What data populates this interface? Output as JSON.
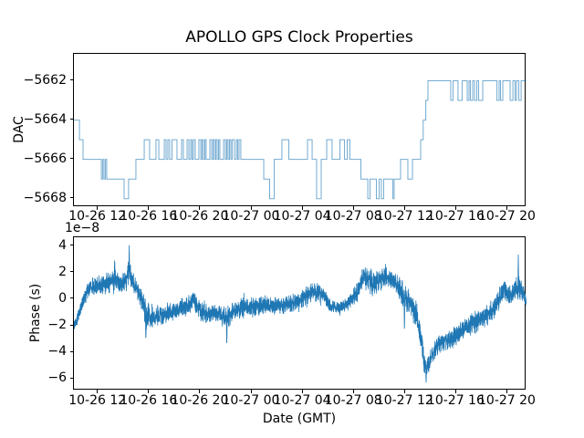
{
  "colors": {
    "line": "#1f77b4",
    "axis": "#000000",
    "background": "#ffffff"
  },
  "chart_data": [
    {
      "type": "line",
      "title": "APOLLO GPS Clock Properties",
      "ylabel": "DAC",
      "line_style": "steps-post",
      "line_color": "#1f77b4",
      "ylim": [
        -5668.43,
        -5660.63
      ],
      "yticks": [
        -5662,
        -5664,
        -5666,
        -5668
      ],
      "ytick_labels": [
        "−5662",
        "−5664",
        "−5666",
        "−5668"
      ],
      "xlim_hours": [
        10.1,
        45.47
      ],
      "xticks_hours": [
        12,
        16,
        20,
        24,
        28,
        32,
        36,
        40,
        44
      ],
      "xtick_labels": [
        "10-26 12",
        "10-26 16",
        "10-26 20",
        "10-27 00",
        "10-27 04",
        "10-27 08",
        "10-27 12",
        "10-27 16",
        "10-27 20"
      ],
      "grid": false,
      "steps_hours_dac": [
        [
          10.1,
          -5664
        ],
        [
          10.53,
          -5665
        ],
        [
          10.81,
          -5666
        ],
        [
          12.24,
          -5667
        ],
        [
          12.35,
          -5666
        ],
        [
          12.45,
          -5667
        ],
        [
          12.56,
          -5666
        ],
        [
          12.66,
          -5667
        ],
        [
          14.02,
          -5668
        ],
        [
          14.37,
          -5667
        ],
        [
          14.94,
          -5666
        ],
        [
          15.59,
          -5665
        ],
        [
          16.01,
          -5666
        ],
        [
          16.51,
          -5665
        ],
        [
          16.73,
          -5666
        ],
        [
          17.16,
          -5665
        ],
        [
          17.3,
          -5666
        ],
        [
          17.44,
          -5665
        ],
        [
          17.58,
          -5666
        ],
        [
          17.76,
          -5665
        ],
        [
          18.15,
          -5666
        ],
        [
          18.51,
          -5665
        ],
        [
          18.65,
          -5666
        ],
        [
          18.94,
          -5665
        ],
        [
          19.08,
          -5666
        ],
        [
          19.22,
          -5665
        ],
        [
          19.33,
          -5666
        ],
        [
          19.44,
          -5665
        ],
        [
          19.58,
          -5666
        ],
        [
          19.86,
          -5665
        ],
        [
          20.01,
          -5666
        ],
        [
          20.11,
          -5665
        ],
        [
          20.22,
          -5666
        ],
        [
          20.33,
          -5665
        ],
        [
          20.43,
          -5666
        ],
        [
          20.72,
          -5665
        ],
        [
          20.86,
          -5666
        ],
        [
          20.97,
          -5665
        ],
        [
          21.08,
          -5666
        ],
        [
          21.18,
          -5665
        ],
        [
          21.29,
          -5666
        ],
        [
          21.4,
          -5665
        ],
        [
          21.5,
          -5666
        ],
        [
          21.79,
          -5665
        ],
        [
          21.93,
          -5666
        ],
        [
          22.04,
          -5665
        ],
        [
          22.14,
          -5666
        ],
        [
          22.25,
          -5665
        ],
        [
          22.36,
          -5666
        ],
        [
          22.46,
          -5665
        ],
        [
          22.64,
          -5666
        ],
        [
          22.79,
          -5665
        ],
        [
          22.89,
          -5666
        ],
        [
          23.0,
          -5665
        ],
        [
          23.14,
          -5666
        ],
        [
          24.93,
          -5667
        ],
        [
          25.39,
          -5668
        ],
        [
          25.75,
          -5666
        ],
        [
          26.35,
          -5665
        ],
        [
          26.89,
          -5666
        ],
        [
          28.35,
          -5665
        ],
        [
          28.71,
          -5666
        ],
        [
          29.06,
          -5668
        ],
        [
          29.42,
          -5666
        ],
        [
          29.85,
          -5665
        ],
        [
          30.27,
          -5666
        ],
        [
          30.88,
          -5665
        ],
        [
          31.24,
          -5666
        ],
        [
          31.45,
          -5665
        ],
        [
          31.66,
          -5666
        ],
        [
          32.52,
          -5667
        ],
        [
          33.06,
          -5668
        ],
        [
          33.23,
          -5667
        ],
        [
          33.73,
          -5668
        ],
        [
          33.95,
          -5667
        ],
        [
          34.12,
          -5668
        ],
        [
          34.3,
          -5667
        ],
        [
          35.02,
          -5668
        ],
        [
          35.12,
          -5667
        ],
        [
          35.62,
          -5666
        ],
        [
          36.19,
          -5667
        ],
        [
          36.55,
          -5666
        ],
        [
          37.19,
          -5665
        ],
        [
          37.39,
          -5664
        ],
        [
          37.59,
          -5663
        ],
        [
          37.76,
          -5662
        ],
        [
          39.54,
          -5663
        ],
        [
          39.72,
          -5662
        ],
        [
          40.11,
          -5663
        ],
        [
          40.43,
          -5662
        ],
        [
          40.83,
          -5663
        ],
        [
          40.97,
          -5662
        ],
        [
          41.08,
          -5663
        ],
        [
          41.26,
          -5662
        ],
        [
          41.4,
          -5663
        ],
        [
          41.58,
          -5662
        ],
        [
          41.72,
          -5663
        ],
        [
          42.04,
          -5662
        ],
        [
          43.15,
          -5663
        ],
        [
          43.32,
          -5662
        ],
        [
          43.43,
          -5663
        ],
        [
          43.61,
          -5662
        ],
        [
          44.18,
          -5663
        ],
        [
          44.4,
          -5662
        ],
        [
          44.57,
          -5663
        ],
        [
          44.68,
          -5662
        ],
        [
          44.86,
          -5663
        ],
        [
          45.04,
          -5662
        ],
        [
          45.47,
          -5662
        ]
      ]
    },
    {
      "type": "line",
      "ylabel": "Phase (s)",
      "xlabel": "Date (GMT)",
      "offset_text": "1e−8",
      "scale": "1e-8",
      "line_color": "#1f77b4",
      "ylim": [
        -6.87,
        4.67
      ],
      "yticks": [
        4,
        2,
        0,
        -2,
        -4,
        -6
      ],
      "ytick_labels": [
        "4",
        "2",
        "0",
        "−2",
        "−4",
        "−6"
      ],
      "xlim_hours": [
        10.1,
        45.47
      ],
      "xticks_hours": [
        12,
        16,
        20,
        24,
        28,
        32,
        36,
        40,
        44
      ],
      "xtick_labels": [
        "10-26 12",
        "10-26 16",
        "10-26 20",
        "10-27 00",
        "10-27 04",
        "10-27 08",
        "10-27 12",
        "10-27 16",
        "10-27 20"
      ],
      "grid": false,
      "anchors_hour_mean_amp": [
        [
          10.1,
          -2.0,
          0.2
        ],
        [
          10.4,
          -1.4,
          0.3
        ],
        [
          10.8,
          -0.2,
          0.35
        ],
        [
          11.2,
          0.8,
          0.45
        ],
        [
          11.7,
          0.9,
          0.5
        ],
        [
          12.2,
          1.0,
          0.5
        ],
        [
          12.8,
          1.2,
          0.55
        ],
        [
          13.3,
          1.6,
          0.6
        ],
        [
          13.7,
          1.1,
          0.5
        ],
        [
          14.1,
          1.5,
          0.6
        ],
        [
          14.42,
          2.0,
          0.8
        ],
        [
          14.7,
          1.3,
          0.6
        ],
        [
          15.1,
          0.6,
          0.5
        ],
        [
          15.7,
          -0.9,
          0.8
        ],
        [
          16.1,
          -1.5,
          0.5
        ],
        [
          16.6,
          -1.3,
          0.5
        ],
        [
          17.1,
          -1.1,
          0.5
        ],
        [
          17.7,
          -0.9,
          0.5
        ],
        [
          18.3,
          -0.7,
          0.5
        ],
        [
          18.9,
          -0.6,
          0.5
        ],
        [
          19.4,
          -0.1,
          0.5
        ],
        [
          19.9,
          -0.7,
          0.5
        ],
        [
          20.5,
          -1.2,
          0.45
        ],
        [
          21.1,
          -1.0,
          0.45
        ],
        [
          21.7,
          -1.3,
          0.5
        ],
        [
          22.05,
          -1.5,
          0.6
        ],
        [
          22.5,
          -1.0,
          0.45
        ],
        [
          23.2,
          -0.7,
          0.5
        ],
        [
          24.2,
          -0.6,
          0.5
        ],
        [
          25.2,
          -0.4,
          0.45
        ],
        [
          26.2,
          -0.5,
          0.45
        ],
        [
          27.2,
          -0.3,
          0.45
        ],
        [
          28.2,
          0.2,
          0.5
        ],
        [
          28.9,
          0.6,
          0.45
        ],
        [
          29.6,
          0.3,
          0.45
        ],
        [
          30.1,
          -0.5,
          0.35
        ],
        [
          30.8,
          -0.6,
          0.3
        ],
        [
          31.6,
          -0.3,
          0.35
        ],
        [
          32.2,
          0.5,
          0.5
        ],
        [
          32.75,
          1.8,
          0.55
        ],
        [
          33.3,
          1.2,
          0.6
        ],
        [
          33.9,
          1.4,
          0.55
        ],
        [
          34.45,
          1.8,
          0.5
        ],
        [
          34.9,
          1.4,
          0.5
        ],
        [
          35.4,
          0.9,
          0.6
        ],
        [
          35.9,
          0.3,
          0.8
        ],
        [
          36.4,
          -0.4,
          0.6
        ],
        [
          36.9,
          -1.4,
          0.6
        ],
        [
          37.3,
          -3.6,
          0.7
        ],
        [
          37.62,
          -5.6,
          0.5
        ],
        [
          37.95,
          -4.5,
          0.5
        ],
        [
          38.4,
          -3.6,
          0.45
        ],
        [
          38.9,
          -3.2,
          0.45
        ],
        [
          39.5,
          -3.0,
          0.5
        ],
        [
          40.1,
          -2.6,
          0.5
        ],
        [
          40.7,
          -2.1,
          0.5
        ],
        [
          41.3,
          -1.7,
          0.55
        ],
        [
          41.9,
          -1.5,
          0.55
        ],
        [
          42.5,
          -1.1,
          0.5
        ],
        [
          43.1,
          -0.4,
          0.5
        ],
        [
          43.7,
          0.8,
          0.55
        ],
        [
          44.1,
          0.2,
          0.5
        ],
        [
          44.55,
          0.7,
          0.55
        ],
        [
          44.95,
          0.9,
          0.6
        ],
        [
          45.25,
          0.4,
          0.4
        ],
        [
          45.47,
          -0.4,
          0.2
        ]
      ],
      "spikes_hour_value": [
        [
          13.28,
          3.05
        ],
        [
          14.42,
          4.05
        ],
        [
          15.72,
          -3.2
        ],
        [
          22.04,
          -3.45
        ],
        [
          35.92,
          -2.45
        ],
        [
          37.62,
          -6.25
        ],
        [
          44.82,
          3.35
        ]
      ]
    }
  ]
}
